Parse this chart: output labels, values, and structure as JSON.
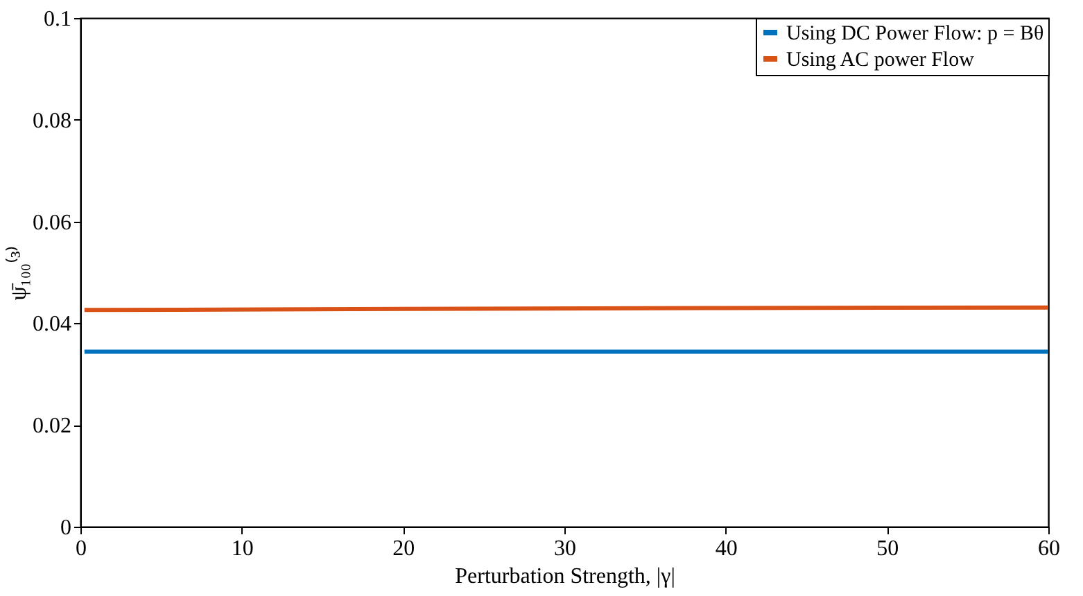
{
  "chart_data": {
    "type": "line",
    "xlabel": "Perturbation Strength, |γ|",
    "ylabel": "ψ̄₁₀₀⁽³⁾",
    "series": [
      {
        "name": "Using DC Power Flow: p = Bθ",
        "color": "#0072bd",
        "x": [
          0.25,
          60
        ],
        "values": [
          0.0344,
          0.0344
        ]
      },
      {
        "name": "Using AC power Flow",
        "color": "#d95319",
        "x": [
          0.25,
          20,
          40,
          60
        ],
        "values": [
          0.0426,
          0.0428,
          0.043,
          0.0431
        ]
      }
    ],
    "xlim": [
      0,
      60
    ],
    "xticks": [
      0,
      10,
      20,
      30,
      40,
      50,
      60
    ],
    "ylim": [
      0,
      0.1
    ],
    "yticks": [
      0,
      0.02,
      0.04,
      0.06,
      0.08,
      0.1
    ],
    "grid": false,
    "legend": "top right",
    "marker": "none",
    "line_style": "solid"
  }
}
